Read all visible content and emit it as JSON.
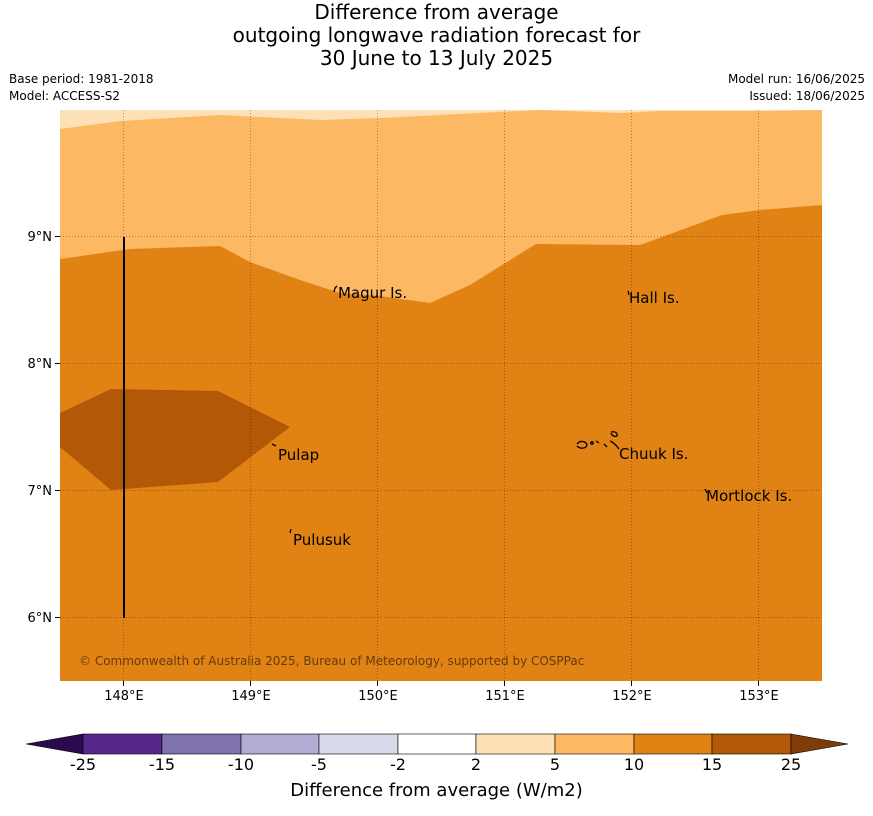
{
  "title": {
    "line1": "Difference from average",
    "line2": "outgoing longwave radiation forecast for",
    "line3": "30 June to 13 July 2025"
  },
  "meta": {
    "base_period": "Base period: 1981-2018",
    "model": "Model: ACCESS-S2",
    "model_run": "Model run: 16/06/2025",
    "issued": "Issued: 18/06/2025"
  },
  "map": {
    "lat_labels": [
      "9°N",
      "8°N",
      "7°N",
      "6°N"
    ],
    "lon_labels": [
      "148°E",
      "149°E",
      "150°E",
      "151°E",
      "152°E",
      "153°E"
    ],
    "places": [
      "Magur Is.",
      "Hall Is.",
      "Pulap",
      "Chuuk Is.",
      "Mortlock Is.",
      "Pulusuk"
    ],
    "copyright": "© Commonwealth of Australia 2025, Bureau of Meteorology, supported by COSPPac"
  },
  "colorbar": {
    "title": "Difference from average (W/m2)",
    "ticks": [
      "-25",
      "-15",
      "-10",
      "-5",
      "-2",
      "2",
      "5",
      "10",
      "15",
      "25"
    ],
    "colors": {
      "below": "#2d0a4e",
      "b1": "#542788",
      "b2": "#8073ac",
      "b3": "#b2abd2",
      "b4": "#d8daeb",
      "b5": "#ffffff",
      "b6": "#fee0b6",
      "b7": "#fdb863",
      "b8": "#e08214",
      "b9": "#b35806",
      "above": "#7f3b08"
    }
  }
}
